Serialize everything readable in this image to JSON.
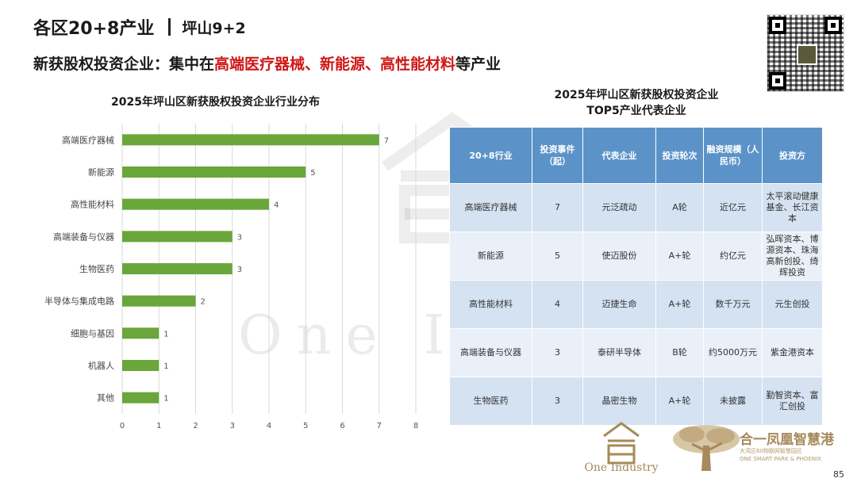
{
  "header": {
    "title": "各区20+8产业",
    "region": "坪山9+2"
  },
  "subtitle": {
    "prefix": "新获股权投资企业：集中在",
    "highlight": "高端医疗器械、新能源、高性能材料",
    "suffix": "等产业"
  },
  "chart_data": {
    "type": "bar",
    "orientation": "horizontal",
    "title": "2025年坪山区新获股权投资企业行业分布",
    "categories": [
      "高端医疗器械",
      "新能源",
      "高性能材料",
      "高端装备与仪器",
      "生物医药",
      "半导体与集成电路",
      "细胞与基因",
      "机器人",
      "其他"
    ],
    "values": [
      7,
      5,
      4,
      3,
      3,
      2,
      1,
      1,
      1
    ],
    "x_ticks": [
      0,
      1,
      2,
      3,
      4,
      5,
      6,
      7,
      8
    ],
    "xlim": [
      0,
      8
    ],
    "grid": true,
    "bar_color": "#6aa63a",
    "xlabel": "",
    "ylabel": ""
  },
  "table": {
    "title_line1": "2025年坪山区新获股权投资企业",
    "title_line2": "TOP5产业代表企业",
    "headers": [
      "20+8行业",
      "投资事件（起）",
      "代表企业",
      "投资轮次",
      "融资规模（人民币）",
      "投资方"
    ],
    "rows": [
      [
        "高端医疗器械",
        "7",
        "元泛疏动",
        "A轮",
        "近亿元",
        "太平滚动健康基金、长江资本"
      ],
      [
        "新能源",
        "5",
        "使迈股份",
        "A+轮",
        "约亿元",
        "弘晖资本、博源资本、珠海高新创投、绮辉投资"
      ],
      [
        "高性能材料",
        "4",
        "迈捷生命",
        "A+轮",
        "数千万元",
        "元生创投"
      ],
      [
        "高端装备与仪器",
        "3",
        "泰研半导体",
        "B轮",
        "约5000万元",
        "紫金港资本"
      ],
      [
        "生物医药",
        "3",
        "晶密生物",
        "A+轮",
        "未披露",
        "勤智资本、富汇创投"
      ]
    ],
    "header_color": "#5b93c9"
  },
  "watermark": "One Industry",
  "footer": {
    "logo_text": "One Industry",
    "brand_name": "合一凤凰智慧港",
    "brand_sub_line1": "大湾区60物联网智慧园区",
    "brand_sub_line2": "ONE SMART PARK & PHOENIX",
    "page_number": "85"
  },
  "colors": {
    "accent_red": "#d01818",
    "gold": "#a68a5a"
  }
}
